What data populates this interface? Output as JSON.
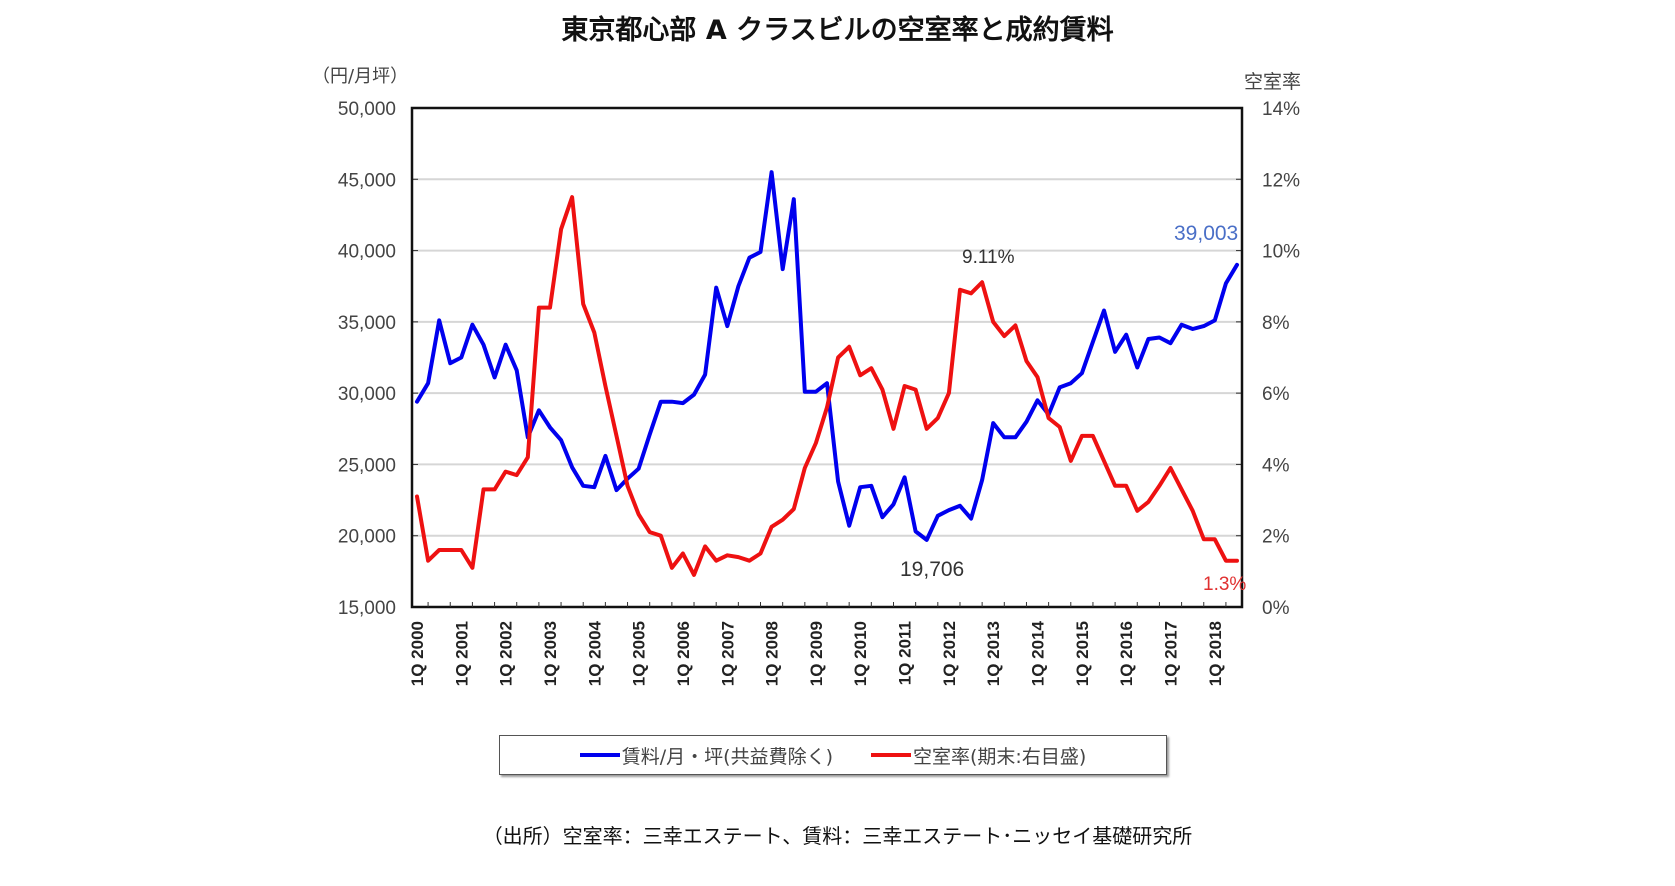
{
  "chart_data": {
    "type": "line",
    "title": "東京都心部 A クラスビルの空室率と成約賃料",
    "left_axis_unit": "（円/月坪）",
    "right_axis_unit": "空室率",
    "y_left": {
      "ylim": [
        15000,
        50000
      ],
      "ticks": [
        "50,000",
        "45,000",
        "40,000",
        "35,000",
        "30,000",
        "25,000",
        "20,000",
        "15,000"
      ],
      "tick_values": [
        50000,
        45000,
        40000,
        35000,
        30000,
        25000,
        20000,
        15000
      ]
    },
    "y_right": {
      "ylim": [
        0,
        14
      ],
      "ticks": [
        "14%",
        "12%",
        "10%",
        "8%",
        "6%",
        "4%",
        "2%",
        "0%"
      ],
      "tick_values": [
        14,
        12,
        10,
        8,
        6,
        4,
        2,
        0
      ]
    },
    "x_tick_labels": [
      "1Q 2000",
      "1Q 2001",
      "1Q 2002",
      "1Q 2003",
      "1Q 2004",
      "1Q 2005",
      "1Q 2006",
      "1Q 2007",
      "1Q 2008",
      "1Q 2009",
      "1Q 2010",
      "1Q 2011",
      "1Q 2012",
      "1Q 2013",
      "1Q 2014",
      "1Q 2015",
      "1Q 2016",
      "1Q 2017",
      "1Q 2018"
    ],
    "x_start": "1Q 2000",
    "x_end": "3Q 2018",
    "grid": true,
    "legend_placement": "bottom",
    "series": [
      {
        "name": "賃料/月・坪(共益費除く)",
        "axis": "left",
        "color": "#0000ee",
        "values": [
          29400,
          30700,
          35100,
          32100,
          32500,
          34800,
          33400,
          31100,
          33400,
          31600,
          26900,
          28800,
          27600,
          26700,
          24800,
          23500,
          23400,
          25600,
          23200,
          24000,
          24700,
          27100,
          29400,
          29400,
          29300,
          29900,
          31300,
          37400,
          34700,
          37500,
          39500,
          39900,
          45500,
          38700,
          43600,
          30100,
          30100,
          30700,
          23800,
          20700,
          23400,
          23500,
          21300,
          22200,
          24100,
          20300,
          19706,
          21400,
          21800,
          22100,
          21200,
          23900,
          27900,
          26900,
          26900,
          28000,
          29500,
          28500,
          30400,
          30700,
          31400,
          33600,
          35800,
          32900,
          34100,
          31800,
          33800,
          33900,
          33500,
          34800,
          34500,
          34700,
          35100,
          37700,
          39003
        ]
      },
      {
        "name": "空室率(期末:右目盛)",
        "axis": "right",
        "color": "#ee1111",
        "values": [
          3.1,
          1.3,
          1.6,
          1.6,
          1.6,
          1.1,
          3.3,
          3.3,
          3.8,
          3.7,
          4.2,
          8.4,
          8.4,
          10.6,
          11.5,
          8.5,
          7.7,
          6.2,
          4.8,
          3.4,
          2.6,
          2.1,
          2.0,
          1.1,
          1.5,
          0.9,
          1.7,
          1.3,
          1.45,
          1.4,
          1.3,
          1.5,
          2.25,
          2.45,
          2.75,
          3.9,
          4.6,
          5.6,
          7.0,
          7.3,
          6.5,
          6.7,
          6.1,
          5.0,
          6.2,
          6.1,
          5.0,
          5.3,
          6.0,
          8.9,
          8.8,
          9.11,
          8.0,
          7.6,
          7.9,
          6.9,
          6.45,
          5.3,
          5.05,
          4.1,
          4.8,
          4.8,
          4.1,
          3.4,
          3.4,
          2.7,
          2.95,
          3.4,
          3.9,
          3.3,
          2.7,
          1.9,
          1.9,
          1.3,
          1.3
        ]
      }
    ],
    "annotations": [
      {
        "text": "39,003",
        "series": "rent",
        "color": "#4a6fc7"
      },
      {
        "text": "9.11%",
        "series": "vacancy",
        "color": "#333333"
      },
      {
        "text": "19,706",
        "series": "rent",
        "color": "#333333"
      },
      {
        "text": "1.3%",
        "series": "vacancy",
        "color": "#e03030"
      }
    ]
  },
  "legend": {
    "items": [
      "賃料/月・坪(共益費除く)",
      "空室率(期末:右目盛)"
    ]
  },
  "source": "（出所）空室率：三幸エステート、賃料：三幸エステート･ニッセイ基礎研究所"
}
